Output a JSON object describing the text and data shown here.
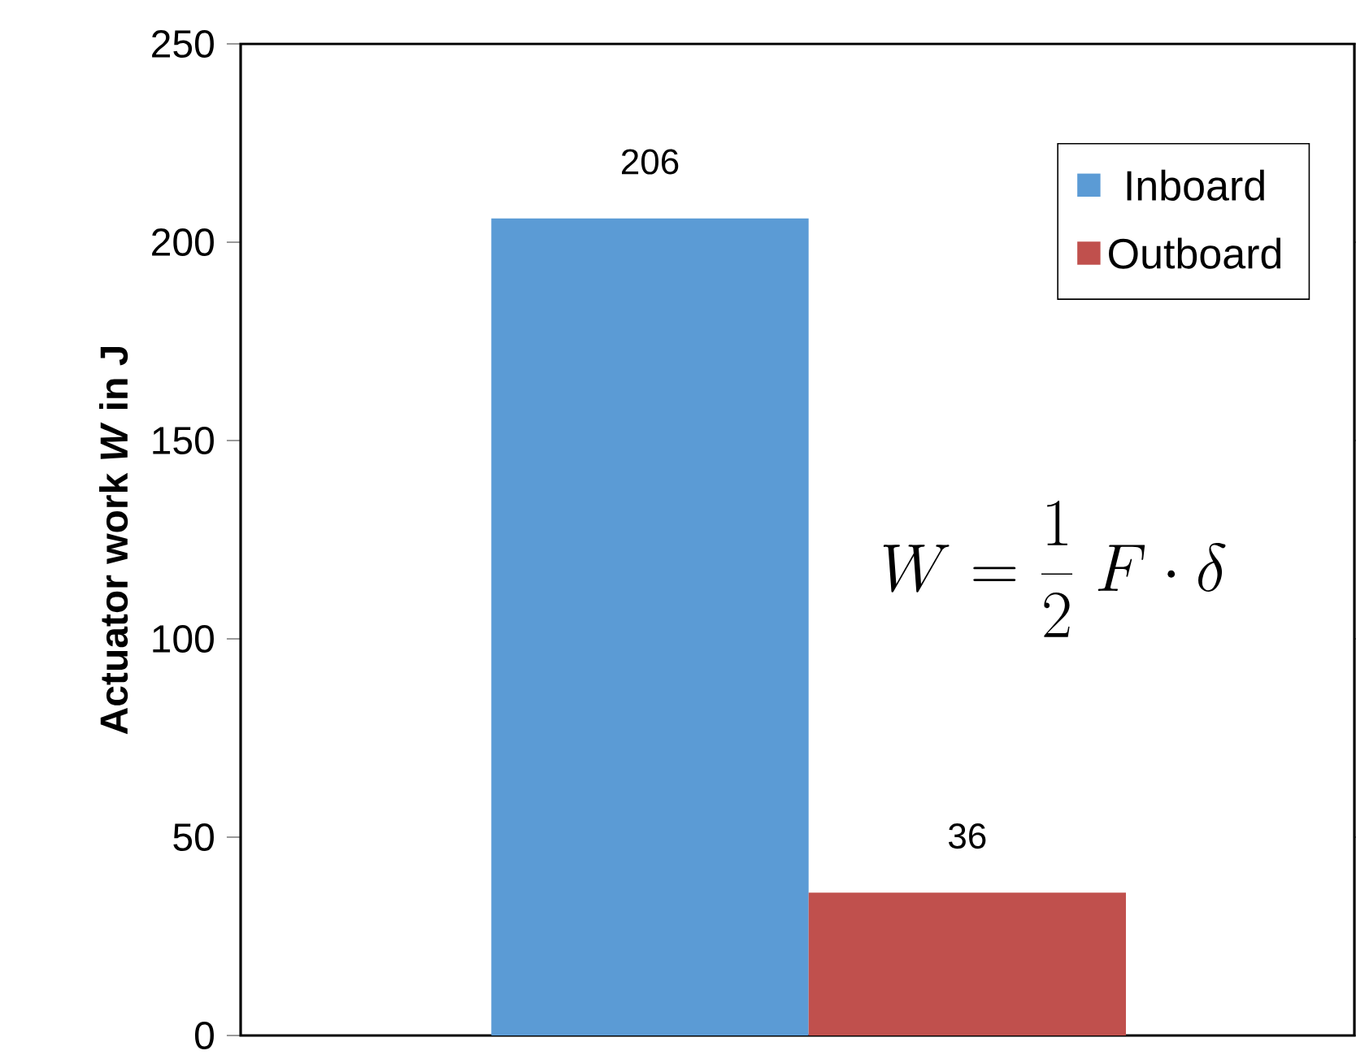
{
  "chart_data": {
    "type": "bar",
    "categories": [
      null
    ],
    "series": [
      {
        "name": "Inboard",
        "color": "#5b9bd5",
        "values": [
          206
        ]
      },
      {
        "name": "Outboard",
        "color": "#c0504d",
        "values": [
          36
        ]
      }
    ],
    "ylabel": "Actuator work *W* in J",
    "ylim": [
      0,
      250
    ],
    "yticks": [
      0,
      50,
      100,
      150,
      200,
      250
    ],
    "data_labels": true,
    "legend": "top right",
    "annotations": [
      "W = \\frac{1}{2}\\;F\\cdot\\delta"
    ]
  }
}
